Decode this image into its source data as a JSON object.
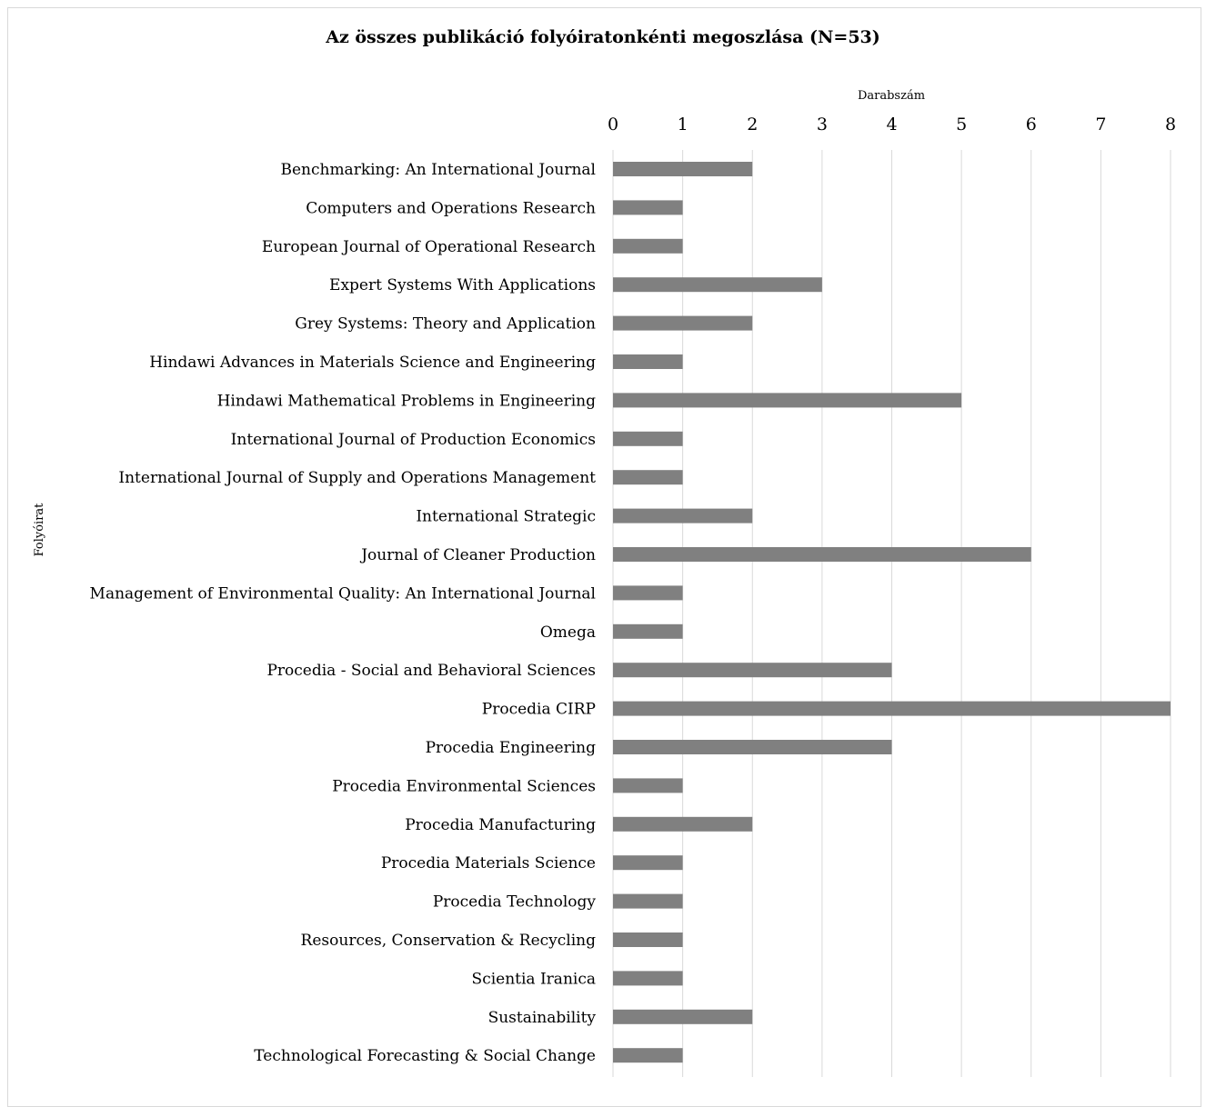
{
  "chart_data": {
    "type": "bar",
    "orientation": "horizontal",
    "title": "Az összes publikáció folyóiratonkénti megoszlása (N=53)",
    "xlabel": "Darabszám",
    "ylabel": "Folyóirat",
    "xlim": [
      0,
      8
    ],
    "x_ticks": [
      "0",
      "1",
      "2",
      "3",
      "4",
      "5",
      "6",
      "7",
      "8"
    ],
    "x_axis_position": "top",
    "grid": true,
    "bar_color": "#808080",
    "grid_color": "#d9d9d9",
    "categories": [
      "Benchmarking: An International Journal",
      "Computers and Operations Research",
      "European Journal of Operational Research",
      "Expert Systems With Applications",
      "Grey Systems: Theory and Application",
      "Hindawi Advances in Materials Science and Engineering",
      "Hindawi Mathematical Problems in Engineering",
      "International Journal of Production Economics",
      "International Journal of Supply and Operations Management",
      "International Strategic",
      "Journal of Cleaner Production",
      "Management of Environmental Quality: An International Journal",
      "Omega",
      "Procedia - Social and Behavioral Sciences",
      "Procedia CIRP",
      "Procedia Engineering",
      "Procedia Environmental Sciences",
      "Procedia Manufacturing",
      "Procedia Materials Science",
      "Procedia Technology",
      "Resources, Conservation & Recycling",
      "Scientia Iranica",
      "Sustainability",
      "Technological Forecasting & Social Change"
    ],
    "values": [
      2,
      1,
      1,
      3,
      2,
      1,
      5,
      1,
      1,
      2,
      6,
      1,
      1,
      4,
      8,
      4,
      1,
      2,
      1,
      1,
      1,
      1,
      2,
      1
    ]
  }
}
